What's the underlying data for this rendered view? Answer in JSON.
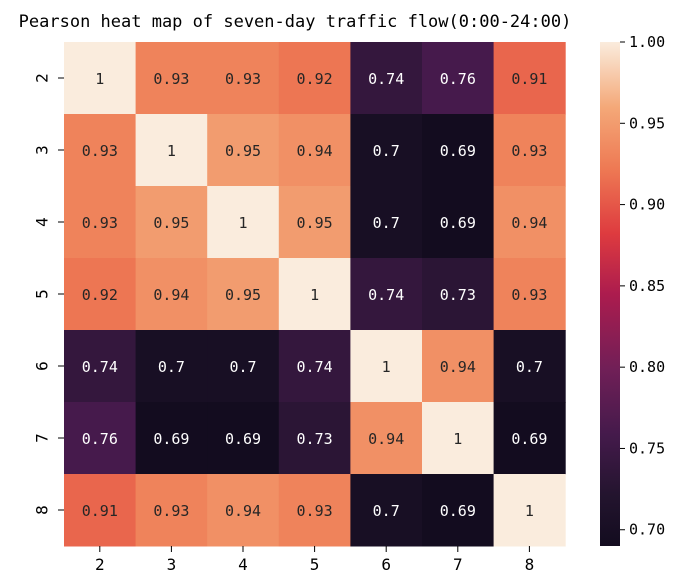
{
  "chart_data": {
    "type": "heatmap",
    "title": "Pearson heat map of seven-day traffic flow(0:00-24:00)",
    "xlabel": "",
    "ylabel": "",
    "x_categories": [
      "2",
      "3",
      "4",
      "5",
      "6",
      "7",
      "8"
    ],
    "y_categories": [
      "2",
      "3",
      "4",
      "5",
      "6",
      "7",
      "8"
    ],
    "values": [
      [
        1,
        0.93,
        0.93,
        0.92,
        0.74,
        0.76,
        0.91
      ],
      [
        0.93,
        1,
        0.95,
        0.94,
        0.7,
        0.69,
        0.93
      ],
      [
        0.93,
        0.95,
        1,
        0.95,
        0.7,
        0.69,
        0.94
      ],
      [
        0.92,
        0.94,
        0.95,
        1,
        0.74,
        0.73,
        0.93
      ],
      [
        0.74,
        0.7,
        0.7,
        0.74,
        1,
        0.94,
        0.7
      ],
      [
        0.76,
        0.69,
        0.69,
        0.73,
        0.94,
        1,
        0.69
      ],
      [
        0.91,
        0.93,
        0.94,
        0.93,
        0.7,
        0.69,
        1
      ]
    ],
    "colorbar": {
      "min": 0.69,
      "max": 1.0,
      "ticks": [
        "1.00",
        "0.95",
        "0.90",
        "0.85",
        "0.80",
        "0.75",
        "0.70"
      ],
      "colormap": "rocket"
    }
  }
}
